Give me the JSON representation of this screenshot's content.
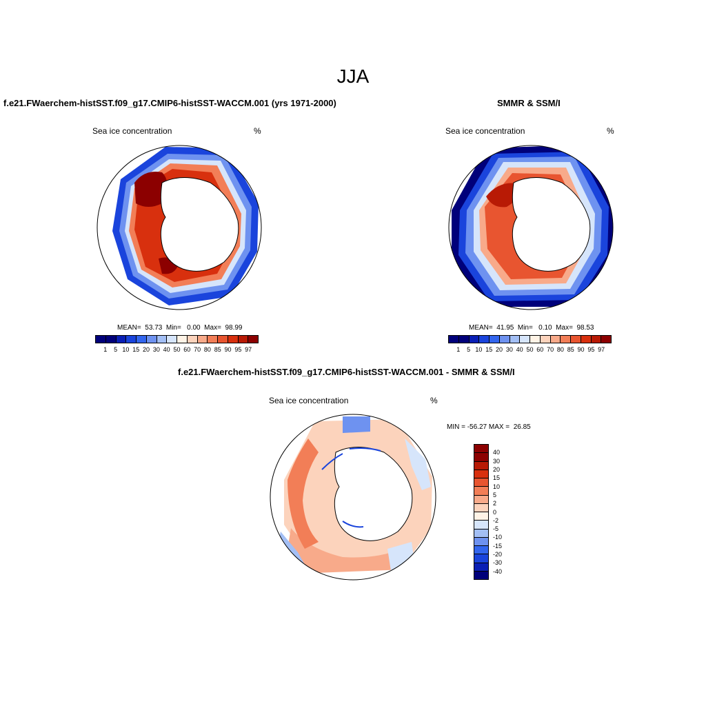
{
  "season": "JJA",
  "panels": {
    "model": {
      "title": "f.e21.FWaerchem-histSST.f09_g17.CMIP6-histSST-WACCM.001 (yrs 1971-2000)",
      "var_label": "Sea ice concentration",
      "unit": "%",
      "stats": "MEAN=  53.73  Min=   0.00  Max=  98.99"
    },
    "obs": {
      "title": "SMMR & SSM/I",
      "var_label": "Sea ice concentration",
      "unit": "%",
      "stats": "MEAN=  41.95  Min=   0.10  Max=  98.53"
    },
    "diff": {
      "title": "f.e21.FWaerchem-histSST.f09_g17.CMIP6-histSST-WACCM.001 - SMMR & SSM/I",
      "var_label": "Sea ice concentration",
      "unit": "%",
      "stats": "MIN = -56.27 MAX =  26.85"
    }
  },
  "abs_colorbar": {
    "levels": [
      "1",
      "5",
      "10",
      "15",
      "20",
      "30",
      "40",
      "50",
      "60",
      "70",
      "80",
      "85",
      "90",
      "95",
      "97"
    ],
    "colors": [
      "#00007a",
      "#0a1fb5",
      "#1a44dc",
      "#3366ee",
      "#6e92f0",
      "#a3bff5",
      "#d6e5fb",
      "#fff3e6",
      "#fcd3bc",
      "#f8aa8a",
      "#f27e57",
      "#e85530",
      "#d8300e",
      "#b81a05",
      "#8c0000"
    ]
  },
  "diff_colorbar": {
    "levels": [
      "40",
      "30",
      "20",
      "15",
      "10",
      "5",
      "2",
      "0",
      "-2",
      "-5",
      "-10",
      "-15",
      "-20",
      "-30",
      "-40"
    ],
    "colors": [
      "#8c0000",
      "#b81a05",
      "#d8300e",
      "#e85530",
      "#f27e57",
      "#f8aa8a",
      "#fcd3bc",
      "#fff3e6",
      "#d6e5fb",
      "#a3bff5",
      "#6e92f0",
      "#3366ee",
      "#1a44dc",
      "#0a1fb5",
      "#00007a"
    ]
  }
}
